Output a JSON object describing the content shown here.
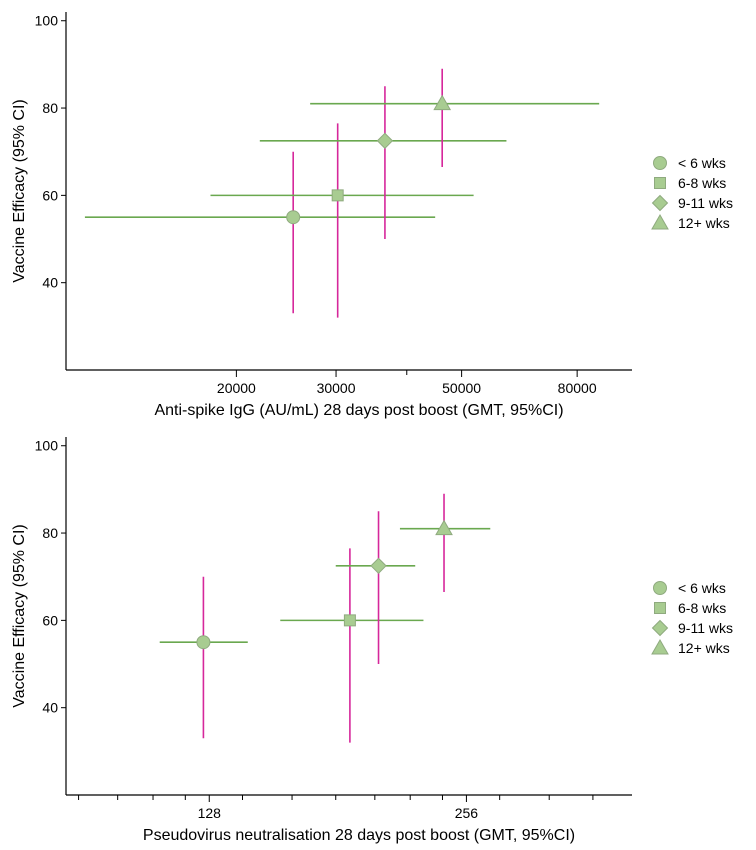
{
  "style": {
    "x_ci_color": "#6aa84f",
    "y_ci_color": "#d6279b",
    "marker_fill": "#a8cc91",
    "marker_stroke": "#8faa7f"
  },
  "chart_data": [
    {
      "type": "scatter",
      "title": "",
      "xlabel": "Anti-spike IgG (AU/mL) 28 days post boost (GMT, 95%CI)",
      "ylabel": "Vaccine Efficacy (95% CI)",
      "xscale": "log",
      "xlim": [
        10000,
        100000
      ],
      "ylim": [
        20,
        102
      ],
      "xticks": [
        20000,
        30000,
        50000,
        80000
      ],
      "xtick_labels": [
        "20000",
        "30000",
        "50000",
        "80000"
      ],
      "xminor": [
        40000
      ],
      "yticks": [
        40,
        60,
        80,
        100
      ],
      "ytick_labels": [
        "40",
        "60",
        "80",
        "100"
      ],
      "legend": "right",
      "series": [
        {
          "name": "< 6 wks",
          "marker": "circle",
          "x": 25200,
          "y": 55,
          "x_ci": [
            10800,
            44900
          ],
          "y_ci": [
            33,
            70
          ]
        },
        {
          "name": "6-8 wks",
          "marker": "square",
          "x": 30200,
          "y": 60,
          "x_ci": [
            18000,
            52500
          ],
          "y_ci": [
            32,
            76.5
          ]
        },
        {
          "name": "9-11 wks",
          "marker": "diamond",
          "x": 36600,
          "y": 72.5,
          "x_ci": [
            22000,
            60000
          ],
          "y_ci": [
            50,
            85
          ]
        },
        {
          "name": "12+ wks",
          "marker": "triangle",
          "x": 46200,
          "y": 81,
          "x_ci": [
            27000,
            87500
          ],
          "y_ci": [
            66.5,
            89
          ]
        }
      ]
    },
    {
      "type": "scatter",
      "title": "",
      "xlabel": "Pseudovirus neutralisation 28 days post boost (GMT, 95%CI)",
      "ylabel": "Vaccine Efficacy (95% CI)",
      "xscale": "log2",
      "xlim": [
        87,
        400
      ],
      "ylim": [
        20,
        102
      ],
      "xticks": [
        128,
        256
      ],
      "xtick_labels": [
        "128",
        "256"
      ],
      "xminor": [
        90,
        100,
        110,
        120,
        140,
        160,
        180,
        200,
        220,
        240,
        280,
        320,
        360
      ],
      "yticks": [
        40,
        60,
        80,
        100
      ],
      "ytick_labels": [
        "40",
        "60",
        "80",
        "100"
      ],
      "legend": "right",
      "series": [
        {
          "name": "< 6 wks",
          "marker": "circle",
          "x": 126,
          "y": 55,
          "x_ci": [
            112,
            142
          ],
          "y_ci": [
            33,
            70
          ]
        },
        {
          "name": "6-8 wks",
          "marker": "square",
          "x": 187,
          "y": 60,
          "x_ci": [
            155,
            228
          ],
          "y_ci": [
            32,
            76.5
          ]
        },
        {
          "name": "9-11 wks",
          "marker": "diamond",
          "x": 202,
          "y": 72.5,
          "x_ci": [
            180,
            223
          ],
          "y_ci": [
            50,
            85
          ]
        },
        {
          "name": "12+ wks",
          "marker": "triangle",
          "x": 241,
          "y": 81,
          "x_ci": [
            214,
            273
          ],
          "y_ci": [
            66.5,
            89
          ]
        }
      ]
    }
  ]
}
